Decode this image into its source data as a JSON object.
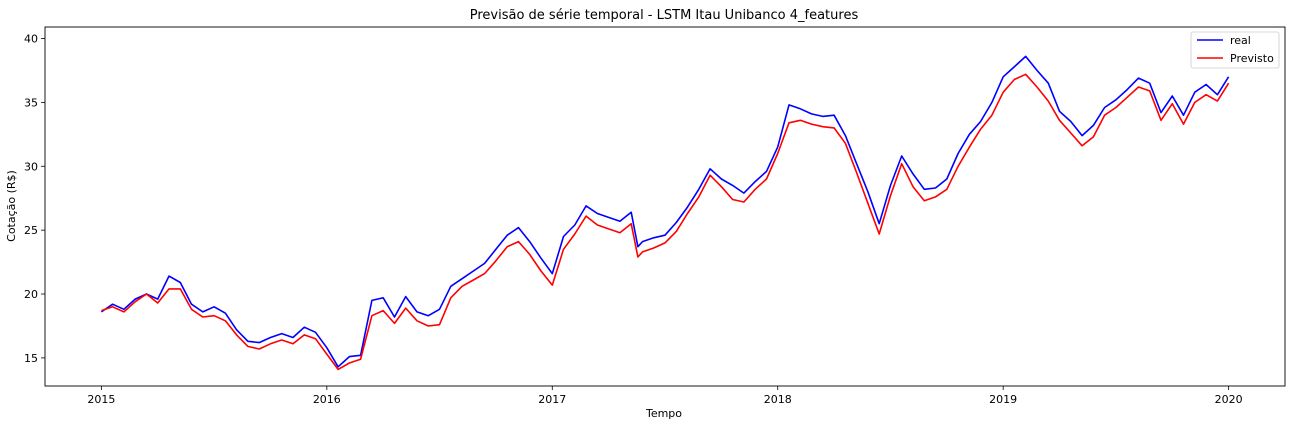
{
  "chart_data": {
    "type": "line",
    "title": "Previsão de série temporal - LSTM Itau Unibanco 4_features",
    "xlabel": "Tempo",
    "ylabel": "Cotação (R$)",
    "xlim": [
      2014.75,
      2020.25
    ],
    "ylim": [
      12.8,
      40.9
    ],
    "x_ticks": [
      2015,
      2016,
      2017,
      2018,
      2019,
      2020
    ],
    "x_tick_labels": [
      "2015",
      "2016",
      "2017",
      "2018",
      "2019",
      "2020"
    ],
    "y_ticks": [
      15,
      20,
      25,
      30,
      35,
      40
    ],
    "y_tick_labels": [
      "15",
      "20",
      "25",
      "30",
      "35",
      "40"
    ],
    "grid": false,
    "legend_position": "top-right",
    "x": [
      2015.0,
      2015.05,
      2015.1,
      2015.15,
      2015.2,
      2015.25,
      2015.3,
      2015.35,
      2015.4,
      2015.45,
      2015.5,
      2015.55,
      2015.6,
      2015.65,
      2015.7,
      2015.75,
      2015.8,
      2015.85,
      2015.9,
      2015.95,
      2016.0,
      2016.05,
      2016.1,
      2016.15,
      2016.2,
      2016.25,
      2016.3,
      2016.35,
      2016.4,
      2016.45,
      2016.5,
      2016.55,
      2016.6,
      2016.65,
      2016.7,
      2016.75,
      2016.8,
      2016.85,
      2016.9,
      2016.95,
      2017.0,
      2017.05,
      2017.1,
      2017.15,
      2017.2,
      2017.25,
      2017.3,
      2017.35,
      2017.38,
      2017.4,
      2017.45,
      2017.5,
      2017.55,
      2017.6,
      2017.65,
      2017.7,
      2017.75,
      2017.8,
      2017.85,
      2017.9,
      2017.95,
      2018.0,
      2018.05,
      2018.1,
      2018.15,
      2018.2,
      2018.25,
      2018.3,
      2018.35,
      2018.4,
      2018.45,
      2018.5,
      2018.55,
      2018.6,
      2018.65,
      2018.7,
      2018.75,
      2018.8,
      2018.85,
      2018.9,
      2018.95,
      2019.0,
      2019.05,
      2019.1,
      2019.15,
      2019.2,
      2019.25,
      2019.3,
      2019.35,
      2019.4,
      2019.45,
      2019.5,
      2019.55,
      2019.6,
      2019.65,
      2019.7,
      2019.75,
      2019.8,
      2019.85,
      2019.9,
      2019.95,
      2020.0
    ],
    "series": [
      {
        "name": "real",
        "color": "#0000ff",
        "values": [
          18.6,
          19.2,
          18.8,
          19.6,
          20.0,
          19.6,
          21.4,
          20.9,
          19.2,
          18.6,
          19.0,
          18.5,
          17.2,
          16.3,
          16.2,
          16.6,
          16.9,
          16.6,
          17.4,
          17.0,
          15.8,
          14.3,
          15.1,
          15.2,
          19.5,
          19.7,
          18.2,
          19.8,
          18.6,
          18.3,
          18.8,
          20.6,
          21.2,
          21.8,
          22.4,
          23.5,
          24.6,
          25.2,
          24.1,
          22.8,
          21.6,
          24.5,
          25.4,
          26.9,
          26.3,
          26.0,
          25.7,
          26.4,
          23.7,
          24.1,
          24.4,
          24.6,
          25.6,
          26.8,
          28.2,
          29.8,
          29.0,
          28.5,
          27.9,
          28.8,
          29.6,
          31.5,
          34.8,
          34.5,
          34.1,
          33.9,
          34.0,
          32.4,
          30.2,
          28.0,
          25.5,
          28.5,
          30.8,
          29.4,
          28.2,
          28.3,
          29.0,
          31.0,
          32.5,
          33.5,
          35.0,
          37.0,
          37.8,
          38.6,
          37.5,
          36.5,
          34.3,
          33.5,
          32.4,
          33.2,
          34.6,
          35.2,
          36.0,
          36.9,
          36.5,
          34.2,
          35.5,
          34.0,
          35.8,
          36.4,
          35.6,
          37.0
        ]
      },
      {
        "name": "Previsto",
        "color": "#ff0000",
        "values": [
          18.7,
          19.0,
          18.6,
          19.4,
          20.0,
          19.3,
          20.4,
          20.4,
          18.8,
          18.2,
          18.3,
          17.9,
          16.8,
          15.9,
          15.7,
          16.1,
          16.4,
          16.1,
          16.8,
          16.5,
          15.3,
          14.1,
          14.6,
          14.9,
          18.3,
          18.7,
          17.7,
          18.9,
          17.9,
          17.5,
          17.6,
          19.7,
          20.6,
          21.1,
          21.6,
          22.6,
          23.7,
          24.1,
          23.1,
          21.8,
          20.7,
          23.5,
          24.7,
          26.1,
          25.4,
          25.1,
          24.8,
          25.5,
          22.9,
          23.3,
          23.6,
          24.0,
          24.9,
          26.3,
          27.6,
          29.3,
          28.4,
          27.4,
          27.2,
          28.2,
          29.0,
          31.0,
          33.4,
          33.6,
          33.3,
          33.1,
          33.0,
          31.8,
          29.5,
          27.1,
          24.7,
          27.7,
          30.2,
          28.4,
          27.3,
          27.6,
          28.2,
          30.0,
          31.5,
          32.9,
          34.0,
          35.8,
          36.8,
          37.2,
          36.2,
          35.1,
          33.6,
          32.6,
          31.6,
          32.3,
          34.0,
          34.6,
          35.4,
          36.2,
          35.9,
          33.6,
          34.9,
          33.3,
          35.0,
          35.6,
          35.1,
          36.5
        ]
      }
    ]
  }
}
